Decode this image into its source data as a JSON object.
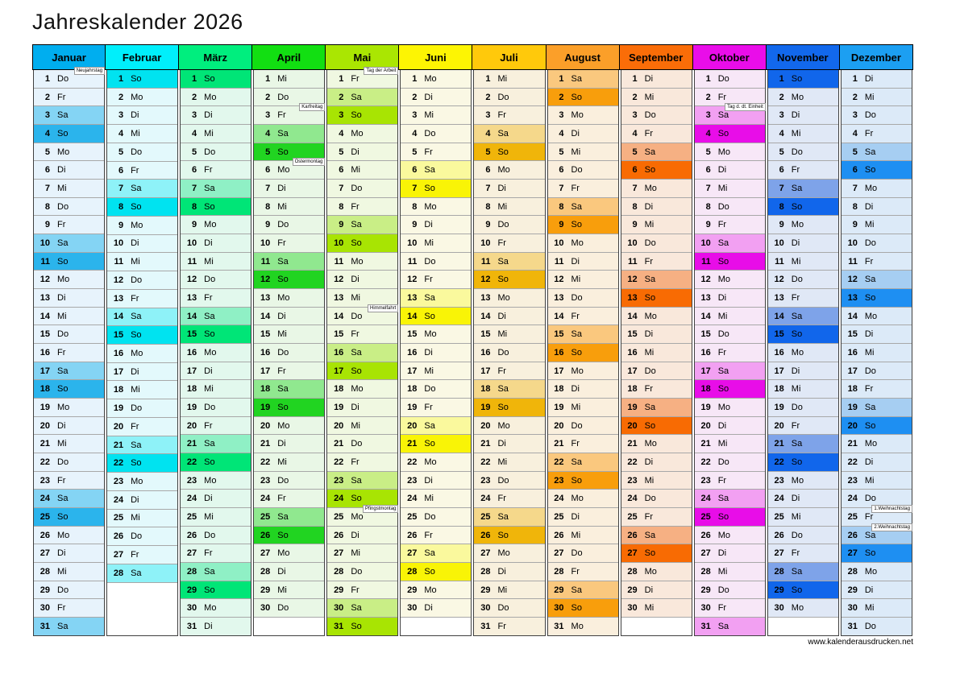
{
  "title": "Jahreskalender 2026",
  "footer": "www.kalenderausdrucken.net",
  "weekdays": [
    "Mo",
    "Di",
    "Mi",
    "Do",
    "Fr",
    "Sa",
    "So"
  ],
  "months": [
    {
      "name": "Januar",
      "start": 3,
      "days": 31,
      "colors": {
        "header": "#00AEEF",
        "day": "#E7F3FC",
        "sat": "#84D4F4",
        "sun": "#2BB4EC"
      },
      "holidays": [
        {
          "day": 1,
          "label": "Neujahrstag"
        }
      ]
    },
    {
      "name": "Februar",
      "start": 6,
      "days": 28,
      "colors": {
        "header": "#00EFFB",
        "day": "#E3F9FC",
        "sat": "#8EF2F8",
        "sun": "#00E3F0"
      },
      "holidays": []
    },
    {
      "name": "März",
      "start": 6,
      "days": 31,
      "colors": {
        "header": "#00EE7E",
        "day": "#E2F8ED",
        "sat": "#8FF0C5",
        "sun": "#00E577"
      },
      "holidays": []
    },
    {
      "name": "April",
      "start": 2,
      "days": 30,
      "colors": {
        "header": "#12DF12",
        "day": "#E9F7E6",
        "sat": "#90E88F",
        "sun": "#21D421"
      },
      "holidays": [
        {
          "day": 3,
          "label": "Karfreitag"
        },
        {
          "day": 6,
          "label": "Ostermontag"
        }
      ]
    },
    {
      "name": "Mai",
      "start": 4,
      "days": 31,
      "colors": {
        "header": "#AAE602",
        "day": "#F0F8E1",
        "sat": "#C9EE86",
        "sun": "#A8E403"
      },
      "holidays": [
        {
          "day": 1,
          "label": "Tag der Arbeit"
        },
        {
          "day": 14,
          "label": "Himmelfahrt"
        },
        {
          "day": 25,
          "label": "Pfingstmontag"
        }
      ]
    },
    {
      "name": "Juni",
      "start": 0,
      "days": 30,
      "colors": {
        "header": "#FDF503",
        "day": "#FAF8E4",
        "sat": "#FAF99D",
        "sun": "#F9F406"
      },
      "holidays": []
    },
    {
      "name": "Juli",
      "start": 2,
      "days": 31,
      "colors": {
        "header": "#FFC90B",
        "day": "#F8F0DD",
        "sat": "#F5D88B",
        "sun": "#F0B50A"
      },
      "holidays": []
    },
    {
      "name": "August",
      "start": 5,
      "days": 31,
      "colors": {
        "header": "#FB9F29",
        "day": "#FAEFDD",
        "sat": "#FAC87E",
        "sun": "#F89E0C"
      },
      "holidays": []
    },
    {
      "name": "September",
      "start": 1,
      "days": 30,
      "colors": {
        "header": "#FA6D08",
        "day": "#F9E8DB",
        "sat": "#F6B083",
        "sun": "#F86B03"
      },
      "holidays": []
    },
    {
      "name": "Oktober",
      "start": 3,
      "days": 31,
      "colors": {
        "header": "#E90DE9",
        "day": "#F7E7F7",
        "sat": "#F2A0F2",
        "sun": "#E80DE8"
      },
      "holidays": [
        {
          "day": 3,
          "label": "Tag d. dt. Einheit"
        }
      ]
    },
    {
      "name": "November",
      "start": 6,
      "days": 30,
      "colors": {
        "header": "#1268EC",
        "day": "#E0E8F6",
        "sat": "#7EA3E9",
        "sun": "#1166EB"
      },
      "holidays": []
    },
    {
      "name": "Dezember",
      "start": 1,
      "days": 31,
      "colors": {
        "header": "#1C9FF2",
        "day": "#DCEAF8",
        "sat": "#A6CEF2",
        "sun": "#1E8FF2"
      },
      "holidays": [
        {
          "day": 25,
          "label": "1.Weihnachtstag"
        },
        {
          "day": 26,
          "label": "2.Weihnachtstag"
        }
      ]
    }
  ]
}
